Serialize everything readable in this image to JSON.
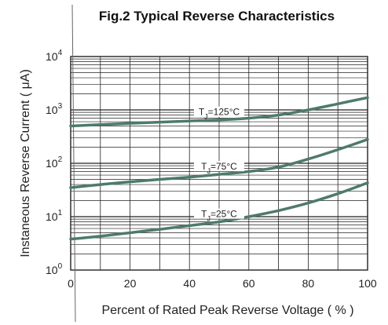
{
  "chart_data": {
    "type": "line",
    "title": "Fig.2  Typical Reverse Characteristics",
    "xlabel": "Percent of Rated Peak Reverse Voltage ( % )",
    "ylabel": "Instaneous Reverse Current ( μA)",
    "x_ticks": [
      "0",
      "20",
      "40",
      "60",
      "80",
      "100"
    ],
    "y_ticks": [
      {
        "base": "10",
        "exp": "4"
      },
      {
        "base": "10",
        "exp": "3"
      },
      {
        "base": "10",
        "exp": "2"
      },
      {
        "base": "10",
        "exp": "1"
      },
      {
        "base": "10",
        "exp": "0"
      }
    ],
    "xlim": [
      0,
      100
    ],
    "ylim": [
      1,
      10000
    ],
    "y_scale": "log",
    "grid": true,
    "line_color": "#4d7a6e",
    "series": [
      {
        "label": "T_J=125°C",
        "x": [
          0,
          10,
          20,
          30,
          40,
          50,
          60,
          70,
          80,
          90,
          100
        ],
        "y": [
          500,
          530,
          560,
          590,
          620,
          650,
          700,
          800,
          1000,
          1300,
          1700
        ]
      },
      {
        "label": "T_J=75°C",
        "x": [
          0,
          10,
          20,
          30,
          40,
          50,
          60,
          70,
          80,
          90,
          100
        ],
        "y": [
          35,
          40,
          45,
          50,
          55,
          62,
          70,
          85,
          120,
          180,
          280
        ]
      },
      {
        "label": "T_J=25°C",
        "x": [
          0,
          10,
          20,
          30,
          40,
          50,
          60,
          70,
          80,
          90,
          100
        ],
        "y": [
          3.8,
          4.3,
          5,
          5.8,
          6.8,
          8,
          10,
          13,
          18,
          27,
          43
        ]
      }
    ]
  }
}
